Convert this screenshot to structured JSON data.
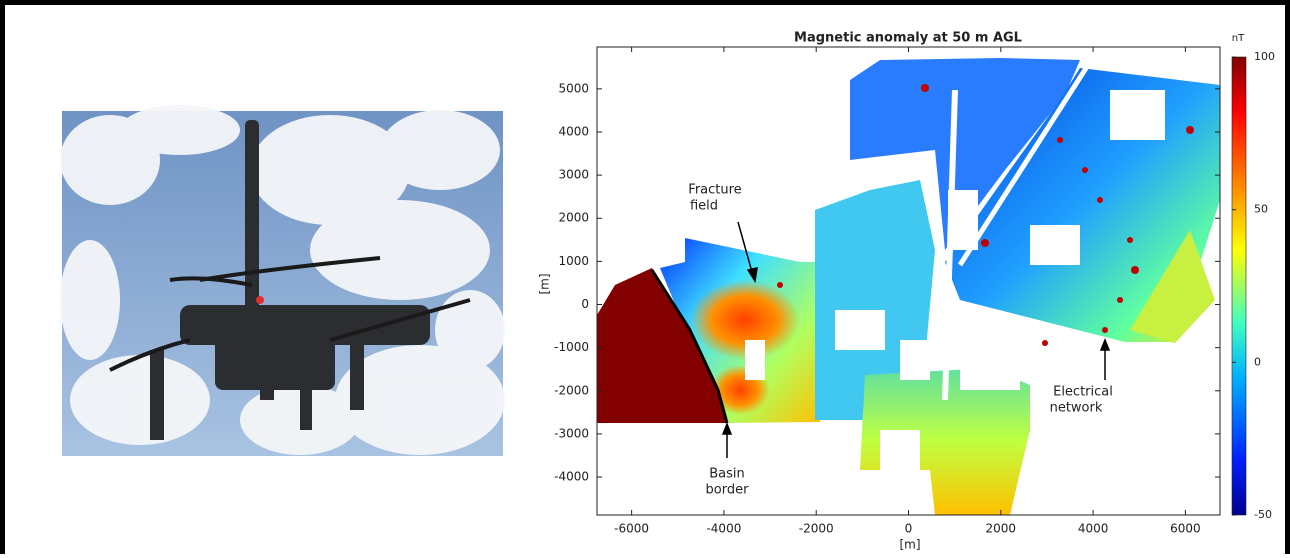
{
  "chart_data": {
    "type": "map",
    "title": "Magnetic anomaly at 50 m AGL",
    "xlabel": "[m]",
    "ylabel": "[m]",
    "xlim": [
      -6750,
      6750
    ],
    "ylim": [
      -4880,
      5970
    ],
    "xticks": [
      -6000,
      -4000,
      -2000,
      0,
      2000,
      4000,
      6000
    ],
    "yticks": [
      -4000,
      -3000,
      -2000,
      -1000,
      0,
      1000,
      2000,
      3000,
      4000,
      5000
    ],
    "colorbar": {
      "label": "nT",
      "lim": [
        -50,
        100
      ],
      "ticks": [
        -50,
        0,
        50,
        100
      ]
    },
    "annotations": [
      {
        "lines": [
          "Fracture",
          "field"
        ]
      },
      {
        "lines": [
          "Basin",
          "border"
        ]
      },
      {
        "lines": [
          "Electrical",
          "network"
        ]
      }
    ]
  }
}
